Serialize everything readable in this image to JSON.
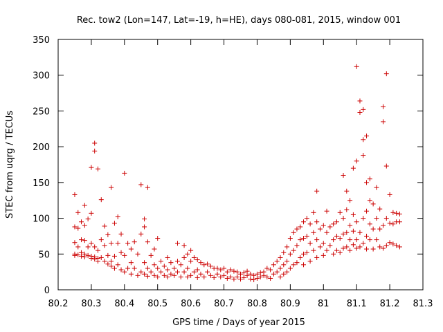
{
  "chart_data": {
    "type": "scatter",
    "title": "Rec. tow2 (Lon=147, Lat=-19, h=HE), days 080-081, 2015, window 001",
    "xlabel": "GPS time / Days of year 2015",
    "ylabel": "STEC from uqrg / TECUs",
    "xlim": [
      80.2,
      81.3
    ],
    "ylim": [
      0,
      350
    ],
    "xticks": [
      "80.2",
      "80.3",
      "80.4",
      "80.5",
      "80.6",
      "80.7",
      "80.8",
      "80.9",
      "81",
      "81.1",
      "81.2",
      "81.3"
    ],
    "yticks": [
      "0",
      "50",
      "100",
      "150",
      "200",
      "250",
      "300",
      "350"
    ],
    "grid": false,
    "marker": "+",
    "color": "#cc0000",
    "series": [
      {
        "name": "STEC",
        "points": [
          [
            80.25,
            133
          ],
          [
            80.26,
            108
          ],
          [
            80.25,
            88
          ],
          [
            80.25,
            66
          ],
          [
            80.25,
            50
          ],
          [
            80.25,
            48
          ],
          [
            80.26,
            86
          ],
          [
            80.26,
            60
          ],
          [
            80.26,
            49
          ],
          [
            80.27,
            95
          ],
          [
            80.27,
            70
          ],
          [
            80.27,
            52
          ],
          [
            80.27,
            47
          ],
          [
            80.28,
            118
          ],
          [
            80.28,
            90
          ],
          [
            80.28,
            69
          ],
          [
            80.28,
            50
          ],
          [
            80.28,
            46
          ],
          [
            80.29,
            99
          ],
          [
            80.29,
            60
          ],
          [
            80.29,
            48
          ],
          [
            80.3,
            171
          ],
          [
            80.3,
            107
          ],
          [
            80.3,
            65
          ],
          [
            80.3,
            47
          ],
          [
            80.3,
            44
          ],
          [
            80.31,
            205
          ],
          [
            80.31,
            194
          ],
          [
            80.31,
            60
          ],
          [
            80.31,
            46
          ],
          [
            80.31,
            43
          ],
          [
            80.32,
            169
          ],
          [
            80.32,
            55
          ],
          [
            80.32,
            44
          ],
          [
            80.32,
            40
          ],
          [
            80.33,
            126
          ],
          [
            80.33,
            70
          ],
          [
            80.33,
            45
          ],
          [
            80.34,
            89
          ],
          [
            80.34,
            62
          ],
          [
            80.34,
            40
          ],
          [
            80.35,
            77
          ],
          [
            80.35,
            48
          ],
          [
            80.35,
            36
          ],
          [
            80.36,
            143
          ],
          [
            80.36,
            65
          ],
          [
            80.36,
            40
          ],
          [
            80.36,
            33
          ],
          [
            80.37,
            93
          ],
          [
            80.37,
            47
          ],
          [
            80.37,
            30
          ],
          [
            80.38,
            102
          ],
          [
            80.38,
            65
          ],
          [
            80.38,
            35
          ],
          [
            80.39,
            78
          ],
          [
            80.39,
            52
          ],
          [
            80.39,
            28
          ],
          [
            80.4,
            163
          ],
          [
            80.4,
            48
          ],
          [
            80.4,
            25
          ],
          [
            80.41,
            65
          ],
          [
            80.41,
            30
          ],
          [
            80.42,
            57
          ],
          [
            80.42,
            38
          ],
          [
            80.42,
            22
          ],
          [
            80.43,
            67
          ],
          [
            80.43,
            30
          ],
          [
            80.44,
            50
          ],
          [
            80.44,
            20
          ],
          [
            80.45,
            147
          ],
          [
            80.45,
            78
          ],
          [
            80.45,
            25
          ],
          [
            80.46,
            99
          ],
          [
            80.46,
            88
          ],
          [
            80.46,
            38
          ],
          [
            80.46,
            22
          ],
          [
            80.47,
            143
          ],
          [
            80.47,
            67
          ],
          [
            80.47,
            30
          ],
          [
            80.47,
            19
          ],
          [
            80.48,
            48
          ],
          [
            80.48,
            25
          ],
          [
            80.49,
            57
          ],
          [
            80.49,
            35
          ],
          [
            80.49,
            20
          ],
          [
            80.5,
            72
          ],
          [
            80.5,
            30
          ],
          [
            80.5,
            18
          ],
          [
            80.51,
            40
          ],
          [
            80.51,
            25
          ],
          [
            80.52,
            33
          ],
          [
            80.52,
            20
          ],
          [
            80.53,
            45
          ],
          [
            80.53,
            28
          ],
          [
            80.53,
            18
          ],
          [
            80.54,
            38
          ],
          [
            80.54,
            22
          ],
          [
            80.55,
            30
          ],
          [
            80.55,
            20
          ],
          [
            80.56,
            65
          ],
          [
            80.56,
            40
          ],
          [
            80.56,
            25
          ],
          [
            80.57,
            35
          ],
          [
            80.57,
            18
          ],
          [
            80.58,
            62
          ],
          [
            80.58,
            45
          ],
          [
            80.58,
            25
          ],
          [
            80.59,
            50
          ],
          [
            80.59,
            30
          ],
          [
            80.59,
            18
          ],
          [
            80.6,
            55
          ],
          [
            80.6,
            40
          ],
          [
            80.6,
            20
          ],
          [
            80.61,
            45
          ],
          [
            80.61,
            25
          ],
          [
            80.62,
            42
          ],
          [
            80.62,
            28
          ],
          [
            80.62,
            17
          ],
          [
            80.63,
            38
          ],
          [
            80.63,
            22
          ],
          [
            80.64,
            35
          ],
          [
            80.64,
            18
          ],
          [
            80.65,
            36
          ],
          [
            80.65,
            25
          ],
          [
            80.66,
            33
          ],
          [
            80.66,
            20
          ],
          [
            80.67,
            30
          ],
          [
            80.67,
            17
          ],
          [
            80.68,
            30
          ],
          [
            80.68,
            22
          ],
          [
            80.69,
            28
          ],
          [
            80.69,
            18
          ],
          [
            80.7,
            30
          ],
          [
            80.7,
            20
          ],
          [
            80.71,
            25
          ],
          [
            80.71,
            16
          ],
          [
            80.72,
            28
          ],
          [
            80.72,
            18
          ],
          [
            80.73,
            26
          ],
          [
            80.73,
            15
          ],
          [
            80.74,
            25
          ],
          [
            80.74,
            18
          ],
          [
            80.75,
            22
          ],
          [
            80.75,
            15
          ],
          [
            80.76,
            24
          ],
          [
            80.76,
            17
          ],
          [
            80.77,
            26
          ],
          [
            80.77,
            20
          ],
          [
            80.78,
            22
          ],
          [
            80.78,
            15
          ],
          [
            80.79,
            20
          ],
          [
            80.79,
            14
          ],
          [
            80.8,
            22
          ],
          [
            80.8,
            16
          ],
          [
            80.81,
            24
          ],
          [
            80.81,
            18
          ],
          [
            80.82,
            25
          ],
          [
            80.82,
            20
          ],
          [
            80.83,
            30
          ],
          [
            80.83,
            18
          ],
          [
            80.84,
            28
          ],
          [
            80.84,
            16
          ],
          [
            80.85,
            35
          ],
          [
            80.85,
            22
          ],
          [
            80.86,
            40
          ],
          [
            80.86,
            25
          ],
          [
            80.87,
            45
          ],
          [
            80.87,
            30
          ],
          [
            80.87,
            18
          ],
          [
            80.88,
            52
          ],
          [
            80.88,
            35
          ],
          [
            80.88,
            22
          ],
          [
            80.89,
            60
          ],
          [
            80.89,
            40
          ],
          [
            80.89,
            25
          ],
          [
            80.9,
            72
          ],
          [
            80.9,
            50
          ],
          [
            80.9,
            30
          ],
          [
            80.91,
            80
          ],
          [
            80.91,
            55
          ],
          [
            80.91,
            35
          ],
          [
            80.92,
            85
          ],
          [
            80.92,
            62
          ],
          [
            80.92,
            38
          ],
          [
            80.93,
            88
          ],
          [
            80.93,
            70
          ],
          [
            80.93,
            45
          ],
          [
            80.94,
            95
          ],
          [
            80.94,
            72
          ],
          [
            80.94,
            50
          ],
          [
            80.94,
            35
          ],
          [
            80.95,
            100
          ],
          [
            80.95,
            75
          ],
          [
            80.95,
            52
          ],
          [
            80.96,
            92
          ],
          [
            80.96,
            65
          ],
          [
            80.96,
            40
          ],
          [
            80.97,
            108
          ],
          [
            80.97,
            80
          ],
          [
            80.97,
            55
          ],
          [
            80.98,
            138
          ],
          [
            80.98,
            95
          ],
          [
            80.98,
            70
          ],
          [
            80.98,
            45
          ],
          [
            80.99,
            85
          ],
          [
            80.99,
            60
          ],
          [
            81.0,
            90
          ],
          [
            81.0,
            65
          ],
          [
            81.0,
            48
          ],
          [
            81.01,
            110
          ],
          [
            81.01,
            80
          ],
          [
            81.01,
            55
          ],
          [
            81.02,
            88
          ],
          [
            81.02,
            62
          ],
          [
            81.03,
            92
          ],
          [
            81.03,
            70
          ],
          [
            81.03,
            50
          ],
          [
            81.04,
            95
          ],
          [
            81.04,
            75
          ],
          [
            81.04,
            55
          ],
          [
            81.05,
            108
          ],
          [
            81.05,
            72
          ],
          [
            81.05,
            52
          ],
          [
            81.06,
            160
          ],
          [
            81.06,
            100
          ],
          [
            81.06,
            78
          ],
          [
            81.06,
            58
          ],
          [
            81.07,
            138
          ],
          [
            81.07,
            112
          ],
          [
            81.07,
            80
          ],
          [
            81.07,
            60
          ],
          [
            81.08,
            125
          ],
          [
            81.08,
            90
          ],
          [
            81.08,
            70
          ],
          [
            81.08,
            55
          ],
          [
            81.09,
            170
          ],
          [
            81.09,
            105
          ],
          [
            81.09,
            82
          ],
          [
            81.09,
            63
          ],
          [
            81.1,
            312
          ],
          [
            81.1,
            180
          ],
          [
            81.1,
            95
          ],
          [
            81.1,
            70
          ],
          [
            81.1,
            58
          ],
          [
            81.11,
            264
          ],
          [
            81.11,
            248
          ],
          [
            81.11,
            80
          ],
          [
            81.11,
            60
          ],
          [
            81.12,
            252
          ],
          [
            81.12,
            210
          ],
          [
            81.12,
            188
          ],
          [
            81.12,
            100
          ],
          [
            81.12,
            65
          ],
          [
            81.13,
            215
          ],
          [
            81.13,
            150
          ],
          [
            81.13,
            110
          ],
          [
            81.13,
            75
          ],
          [
            81.13,
            57
          ],
          [
            81.14,
            155
          ],
          [
            81.14,
            125
          ],
          [
            81.14,
            92
          ],
          [
            81.14,
            70
          ],
          [
            81.15,
            120
          ],
          [
            81.15,
            85
          ],
          [
            81.15,
            57
          ],
          [
            81.16,
            143
          ],
          [
            81.16,
            100
          ],
          [
            81.16,
            70
          ],
          [
            81.17,
            113
          ],
          [
            81.17,
            85
          ],
          [
            81.17,
            60
          ],
          [
            81.18,
            256
          ],
          [
            81.18,
            235
          ],
          [
            81.18,
            90
          ],
          [
            81.18,
            58
          ],
          [
            81.19,
            302
          ],
          [
            81.19,
            173
          ],
          [
            81.19,
            100
          ],
          [
            81.19,
            62
          ],
          [
            81.2,
            133
          ],
          [
            81.2,
            93
          ],
          [
            81.2,
            66
          ],
          [
            81.21,
            108
          ],
          [
            81.21,
            92
          ],
          [
            81.21,
            64
          ],
          [
            81.22,
            107
          ],
          [
            81.22,
            95
          ],
          [
            81.22,
            62
          ],
          [
            81.23,
            106
          ],
          [
            81.23,
            95
          ],
          [
            81.23,
            60
          ]
        ]
      }
    ]
  }
}
